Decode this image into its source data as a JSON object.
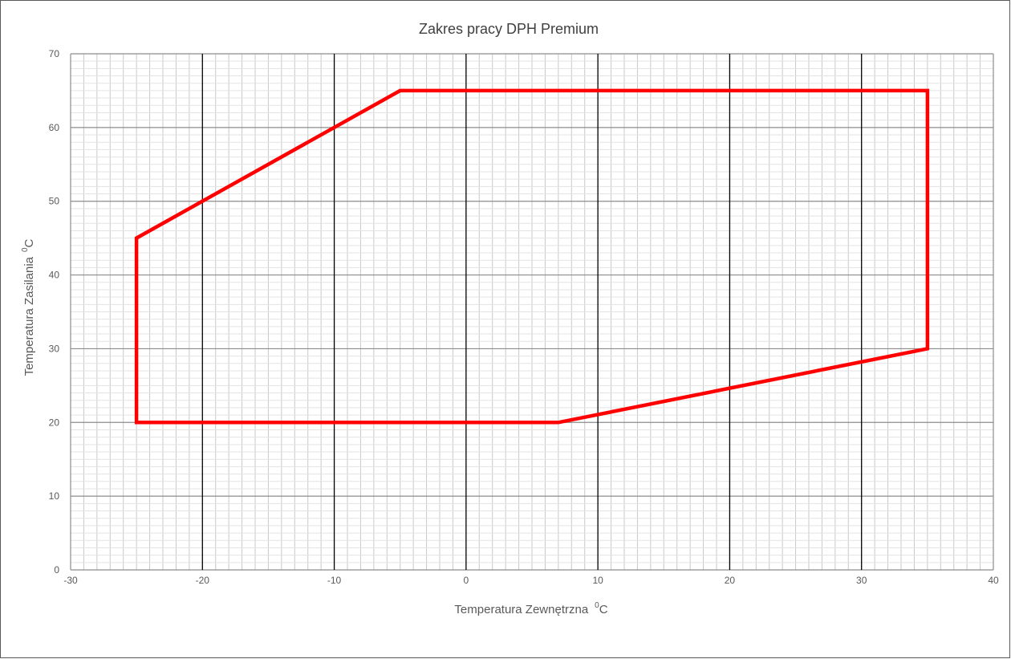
{
  "chart_data": {
    "type": "line",
    "title": "Zakres pracy DPH Premium",
    "xlabel": "Temperatura Zewnętrzna",
    "xlabel_unit": "C",
    "xlabel_unit_sup": "0",
    "ylabel": "Temperatura Zasilania",
    "ylabel_unit": "C",
    "ylabel_unit_sup": "0",
    "xlim": [
      -30,
      40
    ],
    "ylim": [
      0,
      70
    ],
    "x_ticks": [
      -30,
      -20,
      -10,
      0,
      10,
      20,
      30,
      40
    ],
    "y_ticks": [
      0,
      10,
      20,
      30,
      40,
      50,
      60,
      70
    ],
    "x_minor_step": 1,
    "y_minor_step": 1,
    "grid": true,
    "legend": "none",
    "series": [
      {
        "color": "#ff0000",
        "closed": true,
        "points": [
          {
            "x": -25,
            "y": 20
          },
          {
            "x": -25,
            "y": 45
          },
          {
            "x": -5,
            "y": 65
          },
          {
            "x": 35,
            "y": 65
          },
          {
            "x": 35,
            "y": 30
          },
          {
            "x": 7,
            "y": 20
          }
        ]
      }
    ]
  }
}
